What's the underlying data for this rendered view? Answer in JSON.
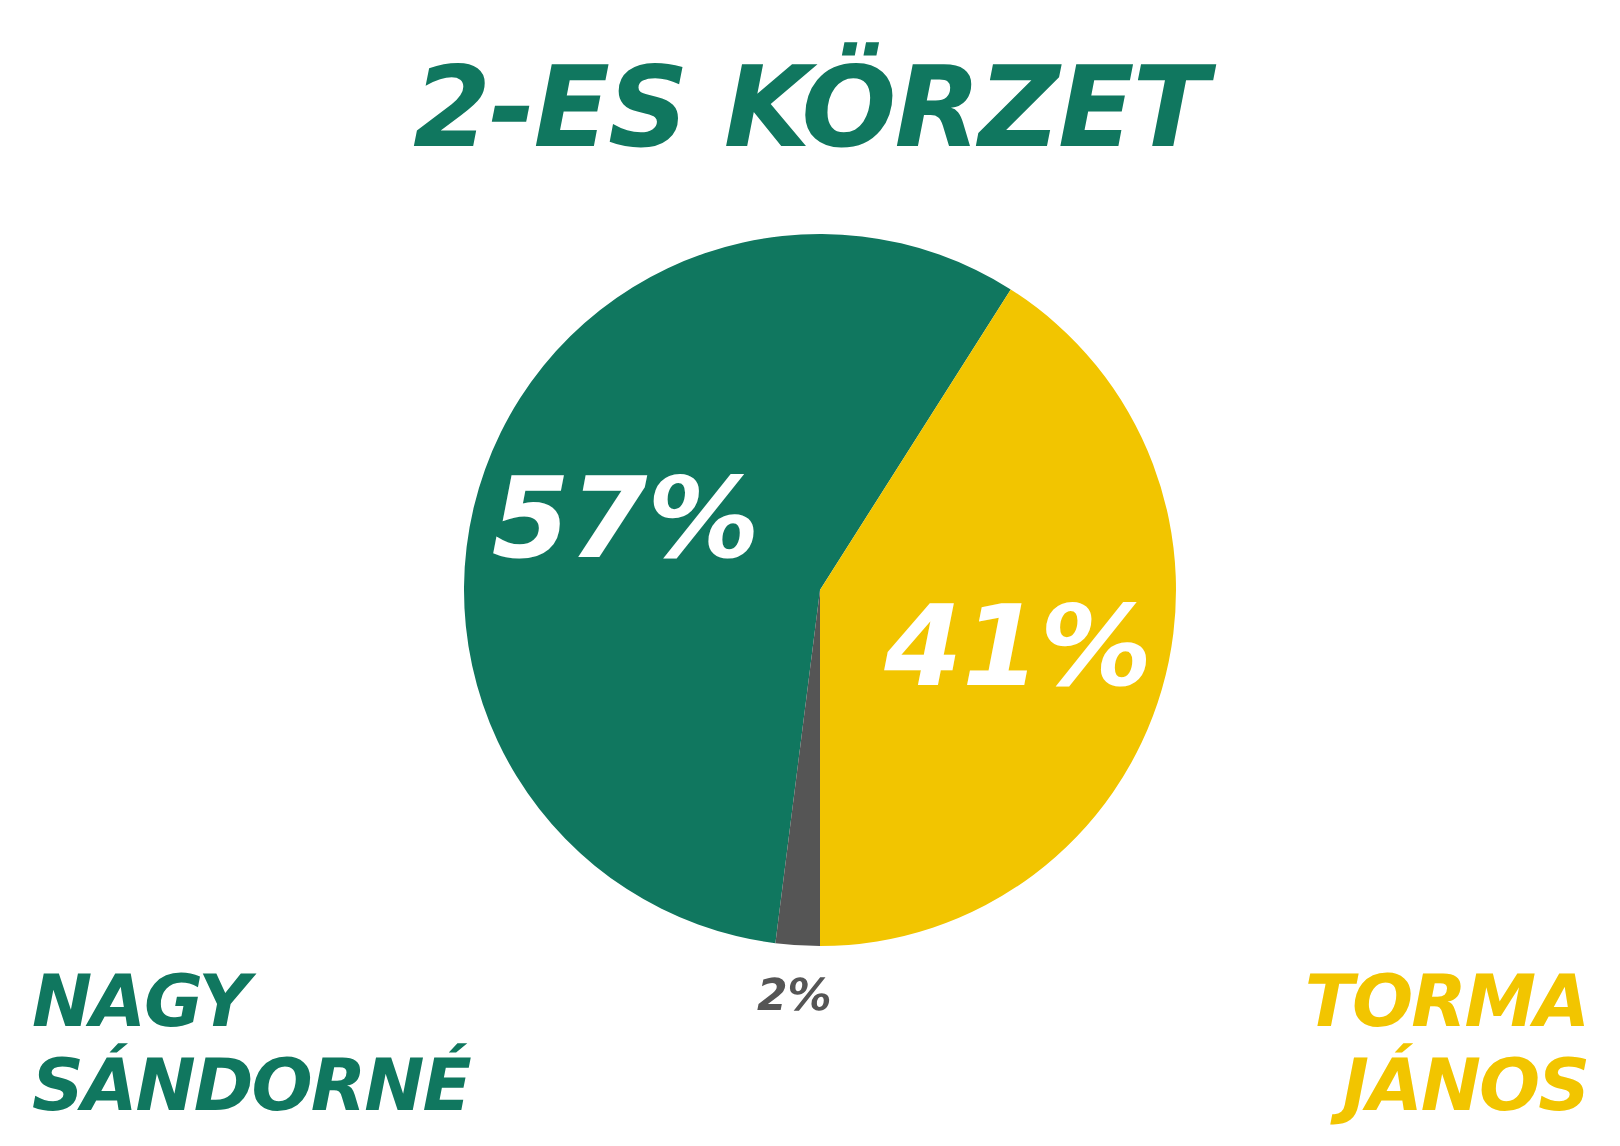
{
  "chart_data": {
    "type": "pie",
    "title": "2-ES KÖRZET",
    "categories": [
      "NAGY SÁNDORNÉ",
      "TORMA JÁNOS",
      null
    ],
    "values": [
      57,
      41,
      2
    ],
    "value_labels": [
      "57%",
      "41%",
      "2%"
    ],
    "colors": [
      "#10775f",
      "#f2c500",
      "#555555"
    ]
  }
}
